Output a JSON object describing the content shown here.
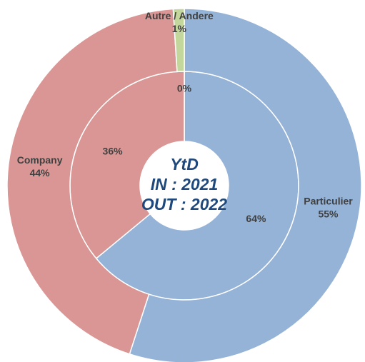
{
  "chart_data": {
    "type": "donut",
    "categories": [
      "Particulier",
      "Company",
      "Autre / Andere"
    ],
    "colors": [
      "#95b3d7",
      "#d99694",
      "#c3d69b"
    ],
    "series": [
      {
        "values": [
          64,
          36,
          0
        ],
        "value_labels": [
          "64%",
          "36%",
          "0%"
        ]
      },
      {
        "values": [
          55,
          44,
          1
        ],
        "value_labels": [
          "55%",
          "44%",
          "1%"
        ]
      }
    ],
    "center_text": [
      "YtD",
      "IN : 2021",
      "OUT : 2022"
    ]
  }
}
